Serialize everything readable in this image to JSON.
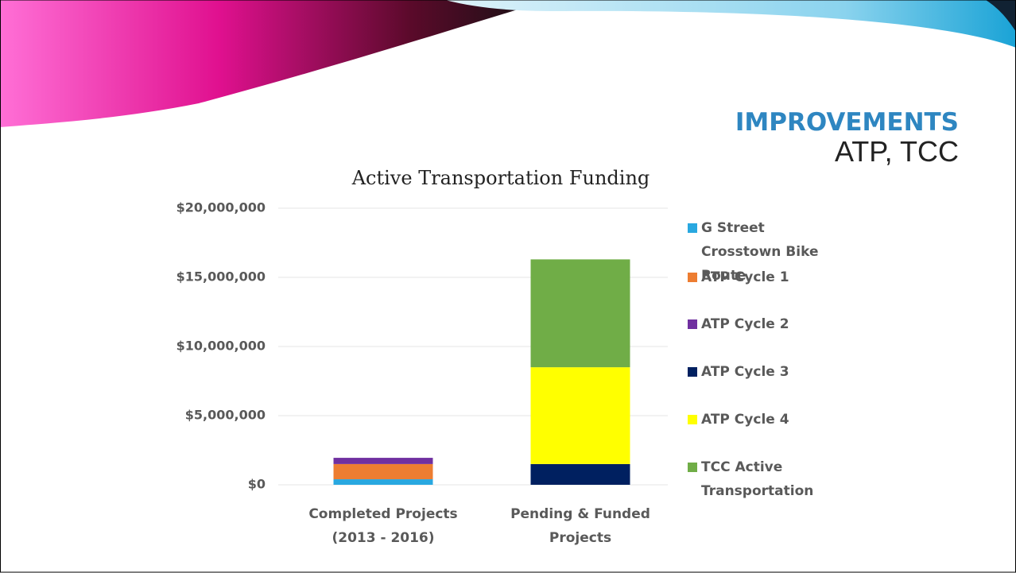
{
  "slide": {
    "title": "IMPROVEMENTS",
    "subtitle": "ATP, TCC"
  },
  "chart_data": {
    "type": "stacked_bar",
    "title": "Active Transportation Funding",
    "categories": [
      "Completed Projects (2013 - 2016)",
      "Pending & Funded Projects"
    ],
    "series": [
      {
        "name": "G Street Crosstown Bike Route",
        "color": "#29a8e0",
        "values": [
          400000,
          0
        ]
      },
      {
        "name": "ATP Cycle 1",
        "color": "#ed7d31",
        "values": [
          1100000,
          0
        ]
      },
      {
        "name": "ATP Cycle 2",
        "color": "#7030a0",
        "values": [
          450000,
          0
        ]
      },
      {
        "name": "ATP Cycle 3",
        "color": "#002060",
        "values": [
          0,
          1500000
        ]
      },
      {
        "name": "ATP Cycle 4",
        "color": "#ffff00",
        "values": [
          0,
          7000000
        ]
      },
      {
        "name": "TCC Active Transportation",
        "color": "#70ad47",
        "values": [
          0,
          7800000
        ]
      }
    ],
    "ylim": [
      0,
      20000000
    ],
    "yticks": [
      {
        "value": 0,
        "label": "$0"
      },
      {
        "value": 5000000,
        "label": "$5,000,000"
      },
      {
        "value": 10000000,
        "label": "$10,000,000"
      },
      {
        "value": 15000000,
        "label": "$15,000,000"
      },
      {
        "value": 20000000,
        "label": "$20,000,000"
      }
    ],
    "grid": true,
    "legend": "right"
  }
}
